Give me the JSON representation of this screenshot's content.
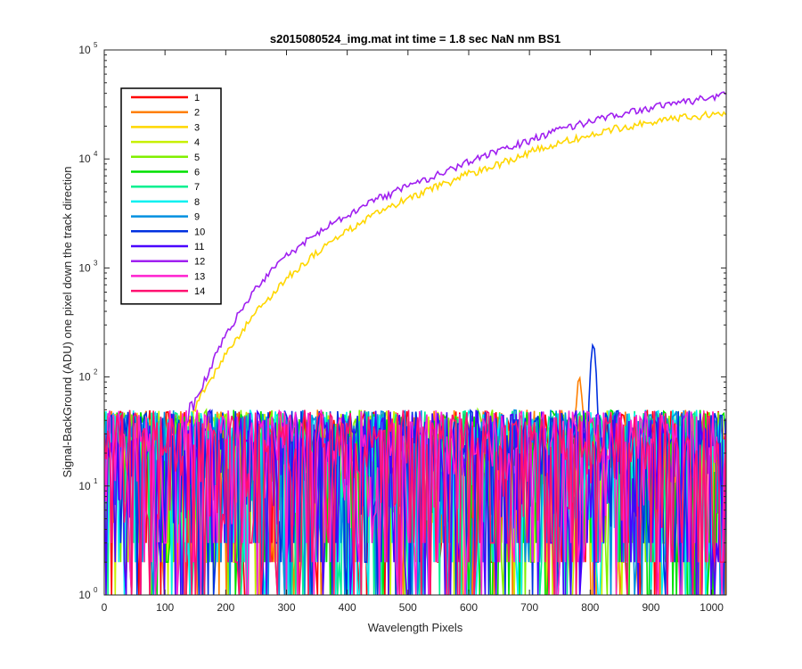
{
  "chart_data": {
    "type": "line",
    "title": "s2015080524_img.mat int time = 1.8 sec  NaN nm BS1",
    "xlabel": "Wavelength Pixels",
    "ylabel": "Signal-BackGround (ADU) one pixel down the track direction",
    "xlim": [
      0,
      1024
    ],
    "ylim": [
      1,
      100000
    ],
    "yscale": "log",
    "grid": false,
    "legend_position": "top-left",
    "x_ticks": [
      "0",
      "100",
      "200",
      "300",
      "400",
      "500",
      "600",
      "700",
      "800",
      "900",
      "1000"
    ],
    "y_ticks": [
      {
        "base": "10",
        "exp": "0"
      },
      {
        "base": "10",
        "exp": "1"
      },
      {
        "base": "10",
        "exp": "2"
      },
      {
        "base": "10",
        "exp": "3"
      },
      {
        "base": "10",
        "exp": "4"
      },
      {
        "base": "10",
        "exp": "5"
      }
    ],
    "series": [
      {
        "name": "1",
        "color": "#ff0000",
        "kind": "noise"
      },
      {
        "name": "2",
        "color": "#ff7f00",
        "kind": "noise_peak",
        "peak_x": 782,
        "peak_y": 100
      },
      {
        "name": "3",
        "color": "#ffd700",
        "kind": "signal",
        "points": [
          [
            0,
            20
          ],
          [
            130,
            30
          ],
          [
            160,
            70
          ],
          [
            200,
            160
          ],
          [
            250,
            400
          ],
          [
            300,
            800
          ],
          [
            350,
            1400
          ],
          [
            400,
            2200
          ],
          [
            450,
            3200
          ],
          [
            500,
            4300
          ],
          [
            550,
            5600
          ],
          [
            600,
            7300
          ],
          [
            650,
            9000
          ],
          [
            700,
            11500
          ],
          [
            750,
            14000
          ],
          [
            800,
            16500
          ],
          [
            850,
            19500
          ],
          [
            900,
            22000
          ],
          [
            950,
            24000
          ],
          [
            1000,
            25500
          ],
          [
            1024,
            26500
          ]
        ]
      },
      {
        "name": "4",
        "color": "#c8f000",
        "kind": "noise"
      },
      {
        "name": "5",
        "color": "#80f000",
        "kind": "noise"
      },
      {
        "name": "6",
        "color": "#00e000",
        "kind": "noise"
      },
      {
        "name": "7",
        "color": "#00f090",
        "kind": "noise"
      },
      {
        "name": "8",
        "color": "#00f0f0",
        "kind": "noise"
      },
      {
        "name": "9",
        "color": "#0090e0",
        "kind": "noise"
      },
      {
        "name": "10",
        "color": "#0030e0",
        "kind": "noise_peak",
        "peak_x": 805,
        "peak_y": 200
      },
      {
        "name": "11",
        "color": "#4a00ff",
        "kind": "noise"
      },
      {
        "name": "12",
        "color": "#a020f0",
        "kind": "signal",
        "points": [
          [
            0,
            20
          ],
          [
            120,
            35
          ],
          [
            150,
            60
          ],
          [
            200,
            250
          ],
          [
            250,
            650
          ],
          [
            300,
            1300
          ],
          [
            350,
            2100
          ],
          [
            400,
            3100
          ],
          [
            450,
            4300
          ],
          [
            500,
            5600
          ],
          [
            550,
            7300
          ],
          [
            600,
            9400
          ],
          [
            650,
            11800
          ],
          [
            700,
            14800
          ],
          [
            750,
            18500
          ],
          [
            800,
            22000
          ],
          [
            850,
            26000
          ],
          [
            900,
            29500
          ],
          [
            950,
            33000
          ],
          [
            1000,
            37000
          ],
          [
            1024,
            40000
          ]
        ]
      },
      {
        "name": "13",
        "color": "#ff20d0",
        "kind": "noise"
      },
      {
        "name": "14",
        "color": "#ff1070",
        "kind": "noise"
      }
    ]
  }
}
